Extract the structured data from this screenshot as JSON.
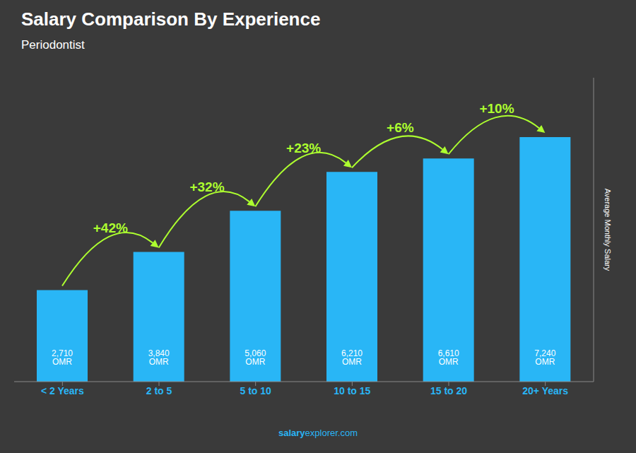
{
  "chart_data": {
    "type": "bar",
    "title": "Salary Comparison By Experience",
    "subtitle": "Periodontist",
    "ylabel": "Average Monthly Salary",
    "categories": [
      "< 2 Years",
      "2 to 5",
      "5 to 10",
      "10 to 15",
      "15 to 20",
      "20+ Years"
    ],
    "values": [
      2710,
      3840,
      5060,
      6210,
      6610,
      7240
    ],
    "value_labels": [
      "2,710 OMR",
      "3,840 OMR",
      "5,060 OMR",
      "6,210 OMR",
      "6,610 OMR",
      "7,240 OMR"
    ],
    "data_labels": true,
    "color": "#29B6F6",
    "ylim": [
      0,
      9000
    ],
    "tick_labels": "x",
    "annotations": [
      "+42%",
      "+32%",
      "+23%",
      "+6%",
      "+10%"
    ],
    "watermark": [
      "salary",
      "explorer.com"
    ]
  }
}
